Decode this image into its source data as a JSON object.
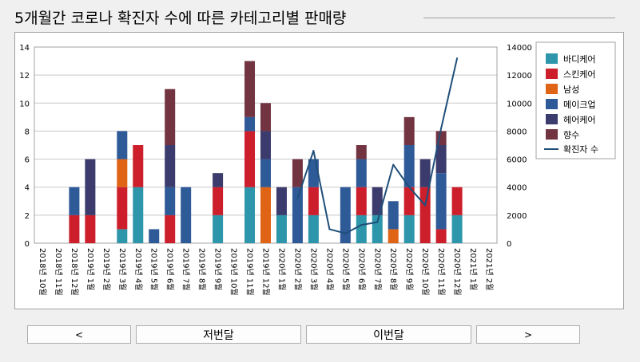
{
  "title": "5개월간 코로나 확진자 수에 따른 카테고리별 판매량",
  "buttons": {
    "first": "<",
    "prev_month": "저번달",
    "this_month": "이번달",
    "last": ">"
  },
  "chart_data": {
    "type": "bar",
    "stacked": true,
    "categories": [
      "2018년 10월",
      "2018년 11월",
      "2018년 12월",
      "2019년 1월",
      "2019년 2월",
      "2019년 3월",
      "2019년 4월",
      "2019년 5월",
      "2019년 6월",
      "2019년 7월",
      "2019년 8월",
      "2019년 9월",
      "2019년 10월",
      "2019년 11월",
      "2019년 12월",
      "2020년 1월",
      "2020년 2월",
      "2020년 3월",
      "2020년 4월",
      "2020년 5월",
      "2020년 6월",
      "2020년 7월",
      "2020년 8월",
      "2020년 9월",
      "2020년 10월",
      "2020년 11월",
      "2020년 12월",
      "2021년 1월",
      "2021년 2월"
    ],
    "y_left": {
      "range": [
        0,
        14
      ],
      "ticks": [
        "0",
        "2",
        "4",
        "6",
        "8",
        "10",
        "12",
        "14"
      ]
    },
    "y_right": {
      "range": [
        0,
        14000
      ],
      "ticks": [
        "0",
        "2000",
        "4000",
        "6000",
        "8000",
        "10000",
        "12000",
        "14000"
      ]
    },
    "grid": true,
    "legend_position": "right",
    "series": [
      {
        "name": "바디케어",
        "color": "#2e96aa",
        "values": [
          0,
          0,
          0,
          0,
          0,
          1,
          4,
          0,
          0,
          0,
          0,
          2,
          0,
          4,
          0,
          2,
          0,
          2,
          0,
          0,
          2,
          2,
          0,
          2,
          0,
          0,
          2,
          0,
          0
        ]
      },
      {
        "name": "스킨케어",
        "color": "#cc1f2b",
        "values": [
          0,
          0,
          2,
          2,
          0,
          3,
          3,
          0,
          2,
          0,
          0,
          2,
          0,
          4,
          0,
          0,
          0,
          2,
          0,
          0,
          2,
          0,
          0,
          2,
          4,
          1,
          2,
          0,
          0
        ]
      },
      {
        "name": "남성",
        "color": "#e06416",
        "values": [
          0,
          0,
          0,
          0,
          0,
          2,
          0,
          0,
          0,
          0,
          0,
          0,
          0,
          0,
          4,
          0,
          0,
          0,
          0,
          0,
          0,
          0,
          1,
          0,
          0,
          0,
          0,
          0,
          0
        ]
      },
      {
        "name": "메이크업",
        "color": "#2f5a98",
        "values": [
          0,
          0,
          2,
          0,
          0,
          2,
          0,
          1,
          2,
          4,
          0,
          0,
          0,
          1,
          2,
          0,
          4,
          2,
          0,
          4,
          2,
          0,
          2,
          3,
          0,
          4,
          0,
          0,
          0
        ]
      },
      {
        "name": "헤어케어",
        "color": "#3b3c6d",
        "values": [
          0,
          0,
          0,
          4,
          0,
          0,
          0,
          0,
          3,
          0,
          0,
          1,
          0,
          0,
          2,
          2,
          0,
          0,
          0,
          0,
          0,
          2,
          0,
          0,
          2,
          2,
          0,
          0,
          0
        ]
      },
      {
        "name": "향수",
        "color": "#733442",
        "values": [
          0,
          0,
          0,
          0,
          0,
          0,
          0,
          0,
          4,
          0,
          0,
          0,
          0,
          4,
          2,
          0,
          2,
          0,
          0,
          0,
          1,
          0,
          0,
          2,
          0,
          1,
          0,
          0,
          0
        ]
      }
    ],
    "line_series": {
      "name": "확진자 수",
      "color": "#1f4e79",
      "axis": "right",
      "values": [
        null,
        null,
        null,
        null,
        null,
        null,
        null,
        null,
        null,
        null,
        null,
        null,
        null,
        null,
        null,
        null,
        3200,
        6600,
        1000,
        700,
        1300,
        1500,
        5600,
        4000,
        2700,
        8200,
        13200,
        null,
        null
      ]
    }
  }
}
